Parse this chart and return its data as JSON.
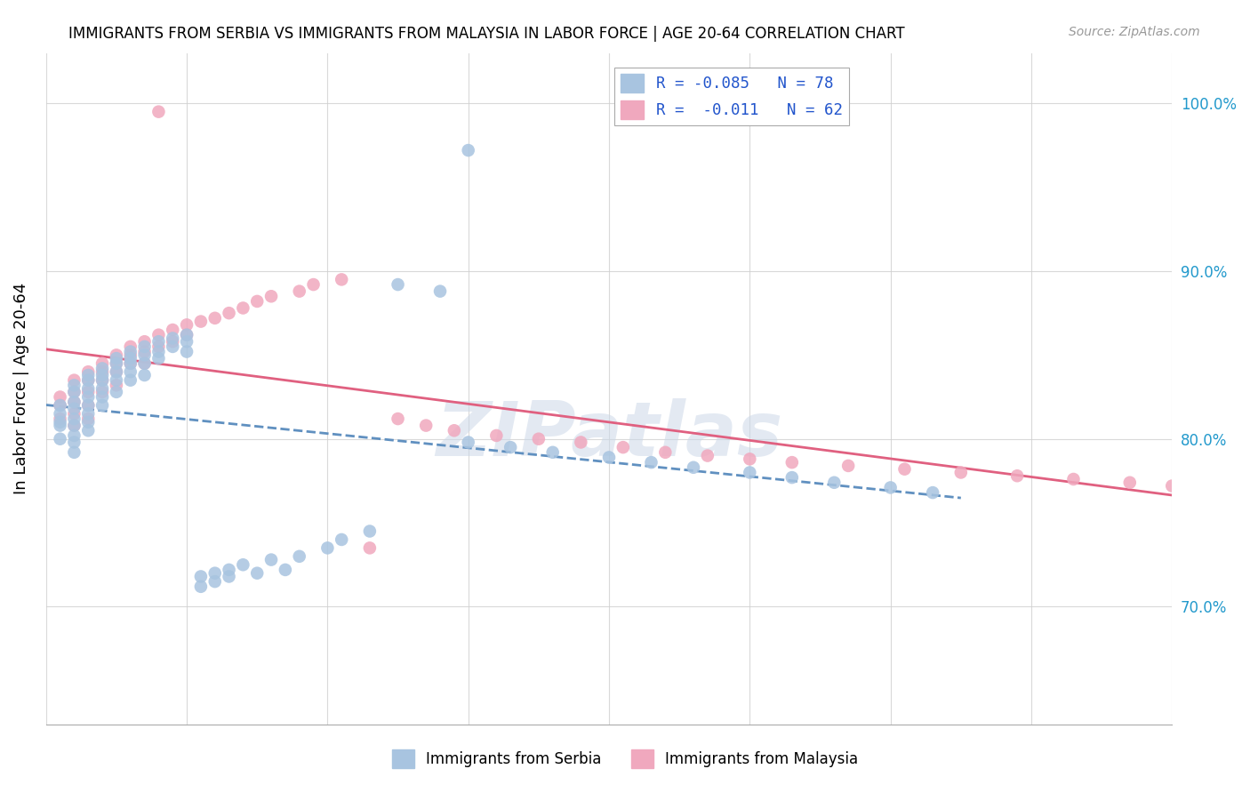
{
  "title": "IMMIGRANTS FROM SERBIA VS IMMIGRANTS FROM MALAYSIA IN LABOR FORCE | AGE 20-64 CORRELATION CHART",
  "source": "Source: ZipAtlas.com",
  "ylabel": "In Labor Force | Age 20-64",
  "xlim": [
    0.0,
    0.08
  ],
  "ylim": [
    0.63,
    1.03
  ],
  "serbia_color": "#a8c4e0",
  "malaysia_color": "#f0a8be",
  "serbia_trend_color": "#6090c0",
  "malaysia_trend_color": "#e06080",
  "watermark": "ZIPatlas",
  "ytick_vals": [
    0.7,
    0.8,
    0.9,
    1.0
  ],
  "xtick_vals": [
    0.0,
    0.01,
    0.02,
    0.03,
    0.04,
    0.05,
    0.06,
    0.07,
    0.08
  ],
  "serbia_R": -0.085,
  "serbia_N": 78,
  "malaysia_R": -0.011,
  "malaysia_N": 62,
  "serbia_x": [
    0.001,
    0.001,
    0.001,
    0.001,
    0.001,
    0.002,
    0.002,
    0.002,
    0.002,
    0.002,
    0.002,
    0.002,
    0.002,
    0.002,
    0.003,
    0.003,
    0.003,
    0.003,
    0.003,
    0.003,
    0.003,
    0.003,
    0.004,
    0.004,
    0.004,
    0.004,
    0.004,
    0.004,
    0.005,
    0.005,
    0.005,
    0.005,
    0.005,
    0.006,
    0.006,
    0.006,
    0.006,
    0.006,
    0.007,
    0.007,
    0.007,
    0.007,
    0.008,
    0.008,
    0.008,
    0.009,
    0.009,
    0.01,
    0.01,
    0.01,
    0.011,
    0.011,
    0.012,
    0.012,
    0.013,
    0.013,
    0.014,
    0.015,
    0.016,
    0.017,
    0.018,
    0.02,
    0.021,
    0.023,
    0.025,
    0.028,
    0.03,
    0.033,
    0.036,
    0.04,
    0.043,
    0.046,
    0.05,
    0.053,
    0.056,
    0.06,
    0.063,
    0.03
  ],
  "serbia_y": [
    0.82,
    0.815,
    0.81,
    0.808,
    0.8,
    0.832,
    0.828,
    0.822,
    0.818,
    0.812,
    0.808,
    0.802,
    0.798,
    0.792,
    0.838,
    0.835,
    0.83,
    0.825,
    0.82,
    0.815,
    0.81,
    0.805,
    0.842,
    0.838,
    0.835,
    0.83,
    0.825,
    0.82,
    0.848,
    0.845,
    0.84,
    0.835,
    0.828,
    0.852,
    0.848,
    0.845,
    0.84,
    0.835,
    0.855,
    0.85,
    0.845,
    0.838,
    0.858,
    0.852,
    0.848,
    0.86,
    0.855,
    0.862,
    0.858,
    0.852,
    0.718,
    0.712,
    0.72,
    0.715,
    0.722,
    0.718,
    0.725,
    0.72,
    0.728,
    0.722,
    0.73,
    0.735,
    0.74,
    0.745,
    0.892,
    0.888,
    0.798,
    0.795,
    0.792,
    0.789,
    0.786,
    0.783,
    0.78,
    0.777,
    0.774,
    0.771,
    0.768,
    0.972
  ],
  "malaysia_x": [
    0.001,
    0.001,
    0.001,
    0.002,
    0.002,
    0.002,
    0.002,
    0.002,
    0.003,
    0.003,
    0.003,
    0.003,
    0.003,
    0.004,
    0.004,
    0.004,
    0.004,
    0.005,
    0.005,
    0.005,
    0.005,
    0.006,
    0.006,
    0.006,
    0.007,
    0.007,
    0.007,
    0.008,
    0.008,
    0.009,
    0.009,
    0.01,
    0.01,
    0.011,
    0.012,
    0.013,
    0.014,
    0.015,
    0.016,
    0.018,
    0.019,
    0.021,
    0.023,
    0.025,
    0.027,
    0.029,
    0.032,
    0.035,
    0.038,
    0.041,
    0.044,
    0.047,
    0.05,
    0.053,
    0.057,
    0.061,
    0.065,
    0.069,
    0.073,
    0.077,
    0.08,
    0.008
  ],
  "malaysia_y": [
    0.825,
    0.82,
    0.812,
    0.835,
    0.828,
    0.822,
    0.815,
    0.808,
    0.84,
    0.835,
    0.828,
    0.82,
    0.812,
    0.845,
    0.84,
    0.835,
    0.828,
    0.85,
    0.845,
    0.84,
    0.832,
    0.855,
    0.85,
    0.845,
    0.858,
    0.852,
    0.845,
    0.862,
    0.855,
    0.865,
    0.858,
    0.868,
    0.862,
    0.87,
    0.872,
    0.875,
    0.878,
    0.882,
    0.885,
    0.888,
    0.892,
    0.895,
    0.735,
    0.812,
    0.808,
    0.805,
    0.802,
    0.8,
    0.798,
    0.795,
    0.792,
    0.79,
    0.788,
    0.786,
    0.784,
    0.782,
    0.78,
    0.778,
    0.776,
    0.774,
    0.772,
    0.995
  ]
}
